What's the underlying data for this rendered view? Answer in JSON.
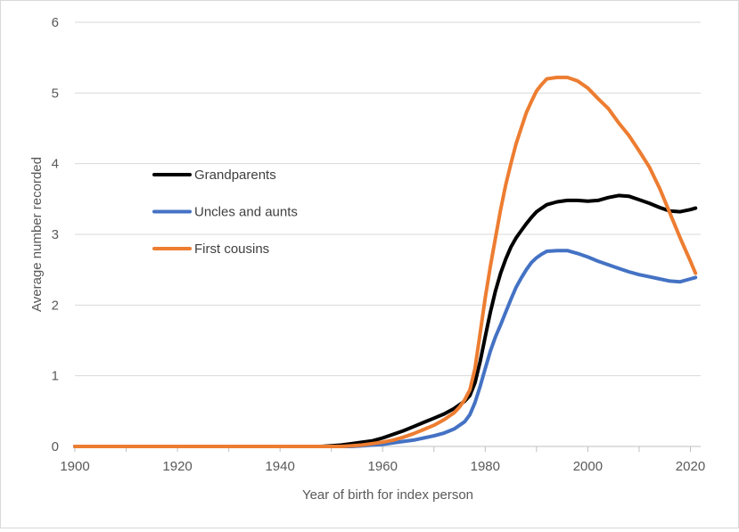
{
  "chart_data": {
    "type": "line",
    "title": "",
    "xlabel": "Year of birth for index person",
    "ylabel": "Average number recorded",
    "xlim": [
      1900,
      2022
    ],
    "ylim": [
      0,
      6
    ],
    "x_ticks": [
      "1900",
      "1920",
      "1940",
      "1960",
      "1980",
      "2000",
      "2020"
    ],
    "y_ticks": [
      "0",
      "1",
      "2",
      "3",
      "4",
      "5",
      "6"
    ],
    "grid": "horizontal",
    "legend_position": "center-left",
    "series": [
      {
        "name": "Grandparents",
        "color": "#000000",
        "points": [
          [
            1900,
            0
          ],
          [
            1948,
            0
          ],
          [
            1950,
            0.01
          ],
          [
            1952,
            0.02
          ],
          [
            1954,
            0.04
          ],
          [
            1956,
            0.06
          ],
          [
            1958,
            0.08
          ],
          [
            1960,
            0.12
          ],
          [
            1962,
            0.17
          ],
          [
            1964,
            0.22
          ],
          [
            1966,
            0.28
          ],
          [
            1968,
            0.34
          ],
          [
            1970,
            0.4
          ],
          [
            1972,
            0.46
          ],
          [
            1974,
            0.54
          ],
          [
            1976,
            0.64
          ],
          [
            1977,
            0.72
          ],
          [
            1978,
            0.9
          ],
          [
            1979,
            1.2
          ],
          [
            1980,
            1.55
          ],
          [
            1981,
            1.9
          ],
          [
            1982,
            2.2
          ],
          [
            1983,
            2.45
          ],
          [
            1984,
            2.65
          ],
          [
            1985,
            2.82
          ],
          [
            1986,
            2.95
          ],
          [
            1987,
            3.05
          ],
          [
            1988,
            3.15
          ],
          [
            1989,
            3.24
          ],
          [
            1990,
            3.32
          ],
          [
            1991,
            3.37
          ],
          [
            1992,
            3.42
          ],
          [
            1994,
            3.46
          ],
          [
            1996,
            3.48
          ],
          [
            1998,
            3.48
          ],
          [
            2000,
            3.47
          ],
          [
            2002,
            3.48
          ],
          [
            2004,
            3.52
          ],
          [
            2006,
            3.55
          ],
          [
            2008,
            3.54
          ],
          [
            2010,
            3.49
          ],
          [
            2012,
            3.44
          ],
          [
            2014,
            3.38
          ],
          [
            2016,
            3.33
          ],
          [
            2018,
            3.32
          ],
          [
            2020,
            3.35
          ],
          [
            2021,
            3.37
          ]
        ]
      },
      {
        "name": "Uncles and aunts",
        "color": "#4472c4",
        "points": [
          [
            1900,
            0
          ],
          [
            1954,
            0
          ],
          [
            1956,
            0.01
          ],
          [
            1958,
            0.02
          ],
          [
            1960,
            0.03
          ],
          [
            1962,
            0.05
          ],
          [
            1964,
            0.07
          ],
          [
            1966,
            0.09
          ],
          [
            1968,
            0.12
          ],
          [
            1970,
            0.15
          ],
          [
            1972,
            0.19
          ],
          [
            1974,
            0.25
          ],
          [
            1976,
            0.35
          ],
          [
            1977,
            0.45
          ],
          [
            1978,
            0.62
          ],
          [
            1979,
            0.85
          ],
          [
            1980,
            1.1
          ],
          [
            1981,
            1.35
          ],
          [
            1982,
            1.55
          ],
          [
            1983,
            1.72
          ],
          [
            1984,
            1.9
          ],
          [
            1985,
            2.08
          ],
          [
            1986,
            2.25
          ],
          [
            1987,
            2.38
          ],
          [
            1988,
            2.5
          ],
          [
            1989,
            2.6
          ],
          [
            1990,
            2.67
          ],
          [
            1991,
            2.72
          ],
          [
            1992,
            2.76
          ],
          [
            1994,
            2.77
          ],
          [
            1996,
            2.77
          ],
          [
            1998,
            2.73
          ],
          [
            2000,
            2.68
          ],
          [
            2002,
            2.62
          ],
          [
            2004,
            2.57
          ],
          [
            2006,
            2.52
          ],
          [
            2008,
            2.47
          ],
          [
            2010,
            2.43
          ],
          [
            2012,
            2.4
          ],
          [
            2014,
            2.37
          ],
          [
            2016,
            2.34
          ],
          [
            2018,
            2.33
          ],
          [
            2020,
            2.37
          ],
          [
            2021,
            2.39
          ]
        ]
      },
      {
        "name": "First cousins",
        "color": "#ed7d31",
        "points": [
          [
            1900,
            0
          ],
          [
            1952,
            0
          ],
          [
            1954,
            0.01
          ],
          [
            1956,
            0.02
          ],
          [
            1958,
            0.04
          ],
          [
            1960,
            0.06
          ],
          [
            1962,
            0.09
          ],
          [
            1964,
            0.13
          ],
          [
            1966,
            0.18
          ],
          [
            1968,
            0.24
          ],
          [
            1970,
            0.3
          ],
          [
            1972,
            0.38
          ],
          [
            1974,
            0.48
          ],
          [
            1975,
            0.56
          ],
          [
            1976,
            0.66
          ],
          [
            1977,
            0.8
          ],
          [
            1978,
            1.1
          ],
          [
            1979,
            1.6
          ],
          [
            1980,
            2.1
          ],
          [
            1981,
            2.55
          ],
          [
            1982,
            2.95
          ],
          [
            1983,
            3.35
          ],
          [
            1984,
            3.7
          ],
          [
            1985,
            4.0
          ],
          [
            1986,
            4.28
          ],
          [
            1987,
            4.5
          ],
          [
            1988,
            4.72
          ],
          [
            1989,
            4.88
          ],
          [
            1990,
            5.03
          ],
          [
            1991,
            5.12
          ],
          [
            1992,
            5.2
          ],
          [
            1994,
            5.22
          ],
          [
            1996,
            5.22
          ],
          [
            1998,
            5.17
          ],
          [
            2000,
            5.07
          ],
          [
            2002,
            4.92
          ],
          [
            2004,
            4.78
          ],
          [
            2006,
            4.58
          ],
          [
            2008,
            4.4
          ],
          [
            2010,
            4.18
          ],
          [
            2012,
            3.95
          ],
          [
            2014,
            3.65
          ],
          [
            2016,
            3.3
          ],
          [
            2018,
            2.95
          ],
          [
            2020,
            2.62
          ],
          [
            2021,
            2.45
          ]
        ]
      }
    ]
  }
}
